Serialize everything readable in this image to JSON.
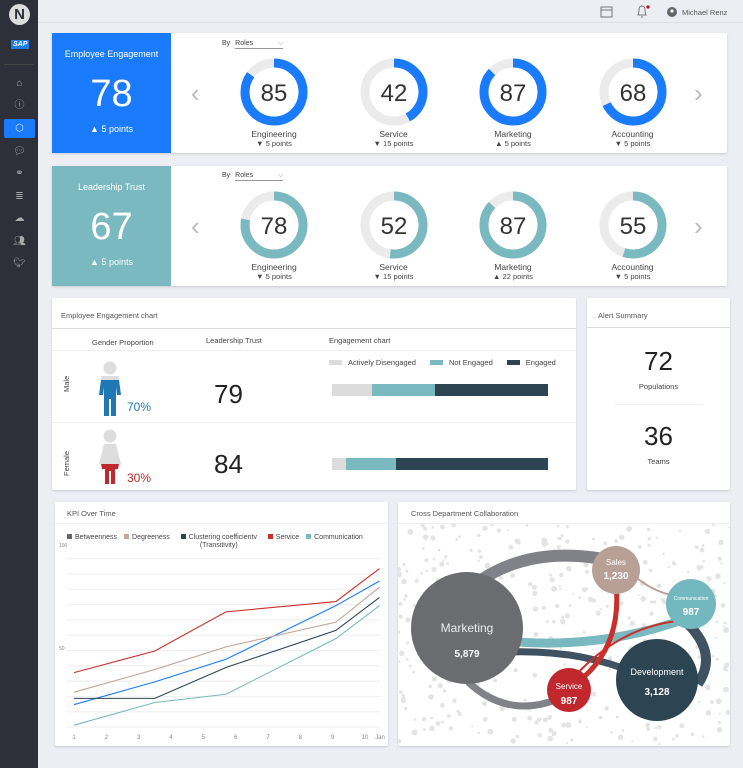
{
  "app": {
    "logo_letter": "N",
    "brand": "SAP"
  },
  "sidebar": {
    "items": [
      {
        "icon": "home-icon"
      },
      {
        "icon": "info-icon"
      },
      {
        "icon": "network-icon",
        "active": true
      },
      {
        "icon": "chat-icon"
      },
      {
        "icon": "link-icon"
      },
      {
        "icon": "database-icon"
      },
      {
        "icon": "cloud-icon"
      },
      {
        "icon": "users-icon"
      },
      {
        "icon": "twitter-icon"
      }
    ]
  },
  "topbar": {
    "user": "Michael Renz"
  },
  "engagement": {
    "title": "Employee Engagement",
    "value": "78",
    "delta": "▲  5 points",
    "by_label": "By",
    "filter": "Roles",
    "color": "#1a7bff",
    "items": [
      {
        "label": "Engineering",
        "value": 85,
        "delta": "▼ 5 points"
      },
      {
        "label": "Service",
        "value": 42,
        "delta": "▼ 15 points"
      },
      {
        "label": "Marketing",
        "value": 87,
        "delta": "▲ 5 points"
      },
      {
        "label": "Accounting",
        "value": 68,
        "delta": "▼ 5 points"
      }
    ]
  },
  "trust": {
    "title": "Leadership Trust",
    "value": "67",
    "delta": "▲  5 points",
    "by_label": "By",
    "filter": "Roles",
    "color": "#7ab9c0",
    "items": [
      {
        "label": "Engineering",
        "value": 78,
        "delta": "▼ 5 points"
      },
      {
        "label": "Service",
        "value": 52,
        "delta": "▼ 15 points"
      },
      {
        "label": "Marketing",
        "value": 87,
        "delta": "▲ 22 points"
      },
      {
        "label": "Accounting",
        "value": 55,
        "delta": "▼ 5 points"
      }
    ]
  },
  "eng_chart": {
    "title": "Employee Engagement chart",
    "headers": {
      "gender": "Gender Proportion",
      "trust": "Leadership Trust",
      "chart": "Engagement chart"
    },
    "legend": [
      {
        "label": "Actively Disengaged",
        "color": "#dcdcdc"
      },
      {
        "label": "Not Engaged",
        "color": "#7ab9c0"
      },
      {
        "label": "Engaged",
        "color": "#2d4452"
      }
    ],
    "rows": [
      {
        "label": "Male",
        "percent": "70%",
        "trust": "79",
        "segments": [
          18.5,
          29,
          52.5
        ],
        "color": "#1f77b4"
      },
      {
        "label": "Female",
        "percent": "30%",
        "trust": "84",
        "segments": [
          6.5,
          23,
          70.5
        ],
        "color": "#c0282d"
      }
    ]
  },
  "alerts": {
    "title": "Alert Summary",
    "items": [
      {
        "value": "72",
        "label": "Populations"
      },
      {
        "value": "36",
        "label": "Teams"
      }
    ]
  },
  "chart_data": {
    "type": "line",
    "title": "KPI Over Time",
    "x_ticks": [
      "1",
      "2",
      "3",
      "4",
      "5",
      "6",
      "7",
      "8",
      "9",
      "10",
      "Jan"
    ],
    "y_ticks": [
      "100",
      "50"
    ],
    "ylim": [
      12,
      100
    ],
    "x": [
      1,
      3.5,
      5.7,
      9.1,
      10.45
    ],
    "series": [
      {
        "name": "Betweenness",
        "legend_color": "#666",
        "color": "#1a7bff",
        "values": [
          24,
          35,
          46,
          72,
          84
        ]
      },
      {
        "name": "Degreeness",
        "color": "#c2a59b",
        "values": [
          30,
          41,
          52,
          64,
          81
        ]
      },
      {
        "name": "Clustering coefficientv (Transitivity)",
        "color": "#2d4452",
        "values": [
          27,
          27,
          42,
          60,
          76
        ]
      },
      {
        "name": "Service",
        "color": "#c9302c",
        "values": [
          39.5,
          50,
          69,
          74,
          90
        ]
      },
      {
        "name": "Communication",
        "color": "#7ab9c0",
        "values": [
          14,
          25,
          29,
          56,
          72
        ]
      }
    ]
  },
  "collab": {
    "title": "Cross Department Collaboration",
    "nodes": [
      {
        "name": "Marketing",
        "value": "5,879"
      },
      {
        "name": "Sales",
        "value": "1,230"
      },
      {
        "name": "Communication",
        "value": "987"
      },
      {
        "name": "Service",
        "value": "987"
      },
      {
        "name": "Development",
        "value": "3,128"
      }
    ]
  }
}
